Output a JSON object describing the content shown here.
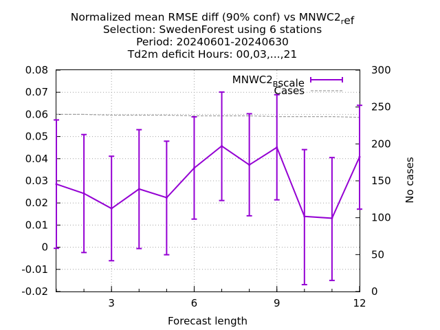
{
  "chart_data": {
    "type": "line",
    "title_lines": [
      "Normalized mean RMSE diff (90% conf) vs MNWC2_ref",
      "Selection: SwedenForest using     6 stations",
      "Period: 20240601-20240630",
      "Td2m deficit   Hours: 00,03,...,21"
    ],
    "xlabel": "Forecast length",
    "ylabel": "",
    "y2label": "No cases",
    "xlim": [
      1,
      12
    ],
    "ylim": [
      -0.02,
      0.08
    ],
    "y2lim": [
      0,
      300
    ],
    "x_ticks": [
      "3",
      "6",
      "9",
      "12"
    ],
    "y_ticks": [
      "-0.02",
      "-0.01",
      "0",
      "0.01",
      "0.02",
      "0.03",
      "0.04",
      "0.05",
      "0.06",
      "0.07",
      "0.08"
    ],
    "y2_ticks": [
      "0",
      "50",
      "100",
      "150",
      "200",
      "250",
      "300"
    ],
    "grid": true,
    "legend_position": "top-right",
    "series": [
      {
        "name": "MNWC2_Bscale",
        "color": "#9400d3",
        "x": [
          1,
          2,
          3,
          4,
          5,
          6,
          7,
          8,
          9,
          10,
          11,
          12
        ],
        "y": [
          0.0285,
          0.0243,
          0.0175,
          0.0263,
          0.0224,
          0.0358,
          0.0457,
          0.0372,
          0.0451,
          0.0139,
          0.0131,
          0.0408
        ],
        "err_low": [
          -0.0005,
          -0.0024,
          -0.0061,
          -0.0006,
          -0.0034,
          0.0127,
          0.0211,
          0.0142,
          0.0214,
          -0.0169,
          -0.015,
          0.0172
        ],
        "err_high": [
          0.0575,
          0.0509,
          0.0411,
          0.0531,
          0.0479,
          0.0589,
          0.0701,
          0.0603,
          0.0689,
          0.0441,
          0.0405,
          0.0641
        ]
      },
      {
        "name": "Cases",
        "color": "#a0a0a0",
        "axis": "y2",
        "x": [
          1,
          2,
          3,
          4,
          5,
          6,
          7,
          8,
          9,
          10,
          11,
          12
        ],
        "y": [
          240,
          240,
          239,
          239,
          239,
          238,
          238,
          238,
          237,
          237,
          237,
          236
        ]
      }
    ]
  }
}
